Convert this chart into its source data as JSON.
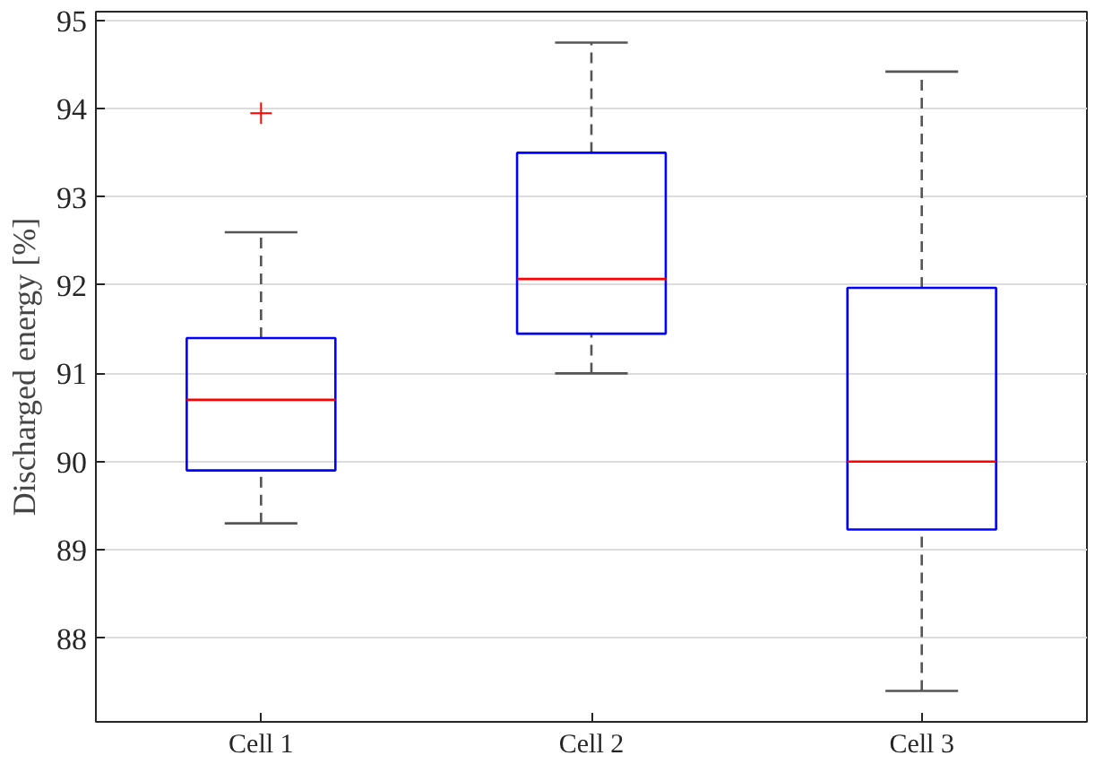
{
  "chart_data": {
    "type": "box",
    "ylabel": "Discharged energy [%]",
    "categories": [
      "Cell 1",
      "Cell 2",
      "Cell 3"
    ],
    "boxes": [
      {
        "low": 89.3,
        "q1": 89.9,
        "median": 90.7,
        "q3": 91.4,
        "high": 92.6,
        "outliers": [
          93.95
        ]
      },
      {
        "low": 91.0,
        "q1": 91.45,
        "median": 92.07,
        "q3": 93.5,
        "high": 94.75
      },
      {
        "low": 87.4,
        "q1": 89.23,
        "median": 90.0,
        "q3": 91.97,
        "high": 94.42
      }
    ],
    "color": "#0000ff",
    "ylim": [
      87.05,
      95.1
    ],
    "yticks": [
      88,
      89,
      90,
      91,
      92,
      93,
      94,
      95
    ],
    "grid": "y"
  }
}
